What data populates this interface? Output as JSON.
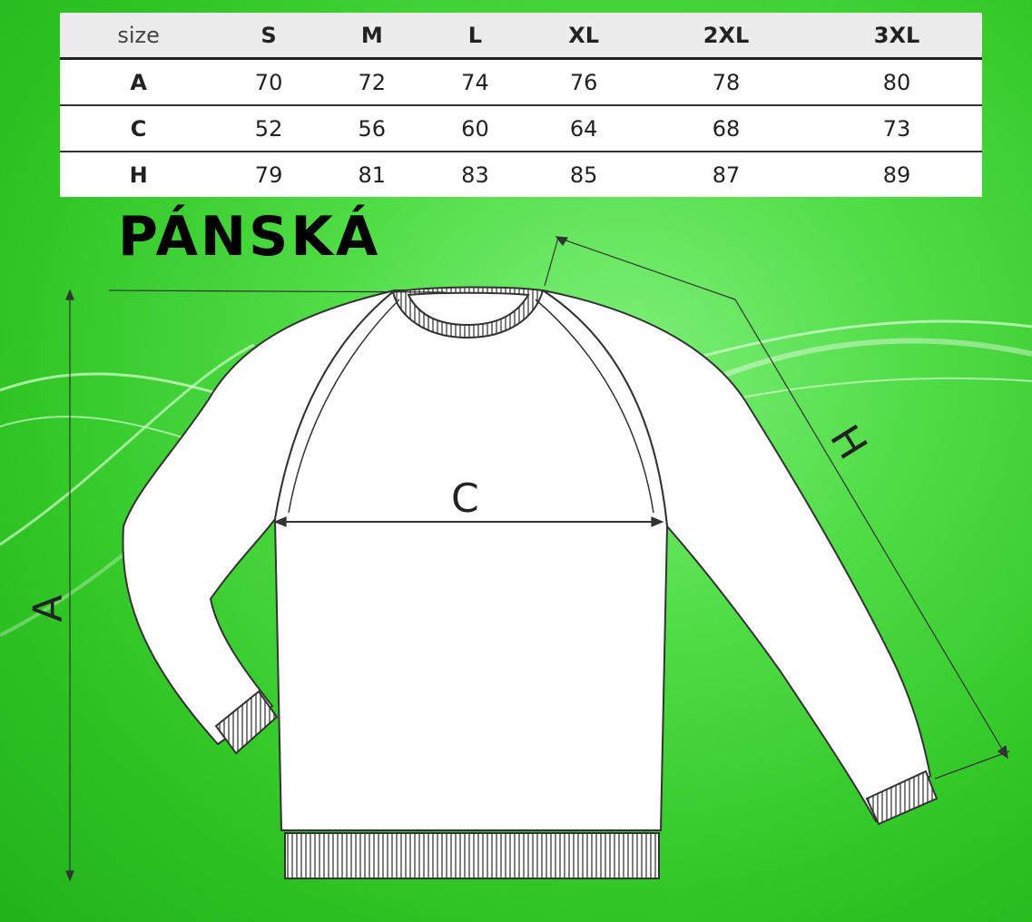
{
  "table": {
    "header": [
      "size",
      "S",
      "M",
      "L",
      "XL",
      "2XL",
      "3XL"
    ],
    "rows": [
      {
        "label": "A",
        "values": [
          "70",
          "72",
          "74",
          "76",
          "78",
          "80"
        ]
      },
      {
        "label": "C",
        "values": [
          "52",
          "56",
          "60",
          "64",
          "68",
          "73"
        ]
      },
      {
        "label": "H",
        "values": [
          "79",
          "81",
          "83",
          "85",
          "87",
          "89"
        ]
      }
    ]
  },
  "title": "PÁNSKÁ",
  "diagram": {
    "labels": {
      "a": "A",
      "c": "C",
      "h": "H"
    }
  },
  "colors": {
    "background": "#3dd033",
    "garment": "#ffffff",
    "outline": "#333333"
  }
}
